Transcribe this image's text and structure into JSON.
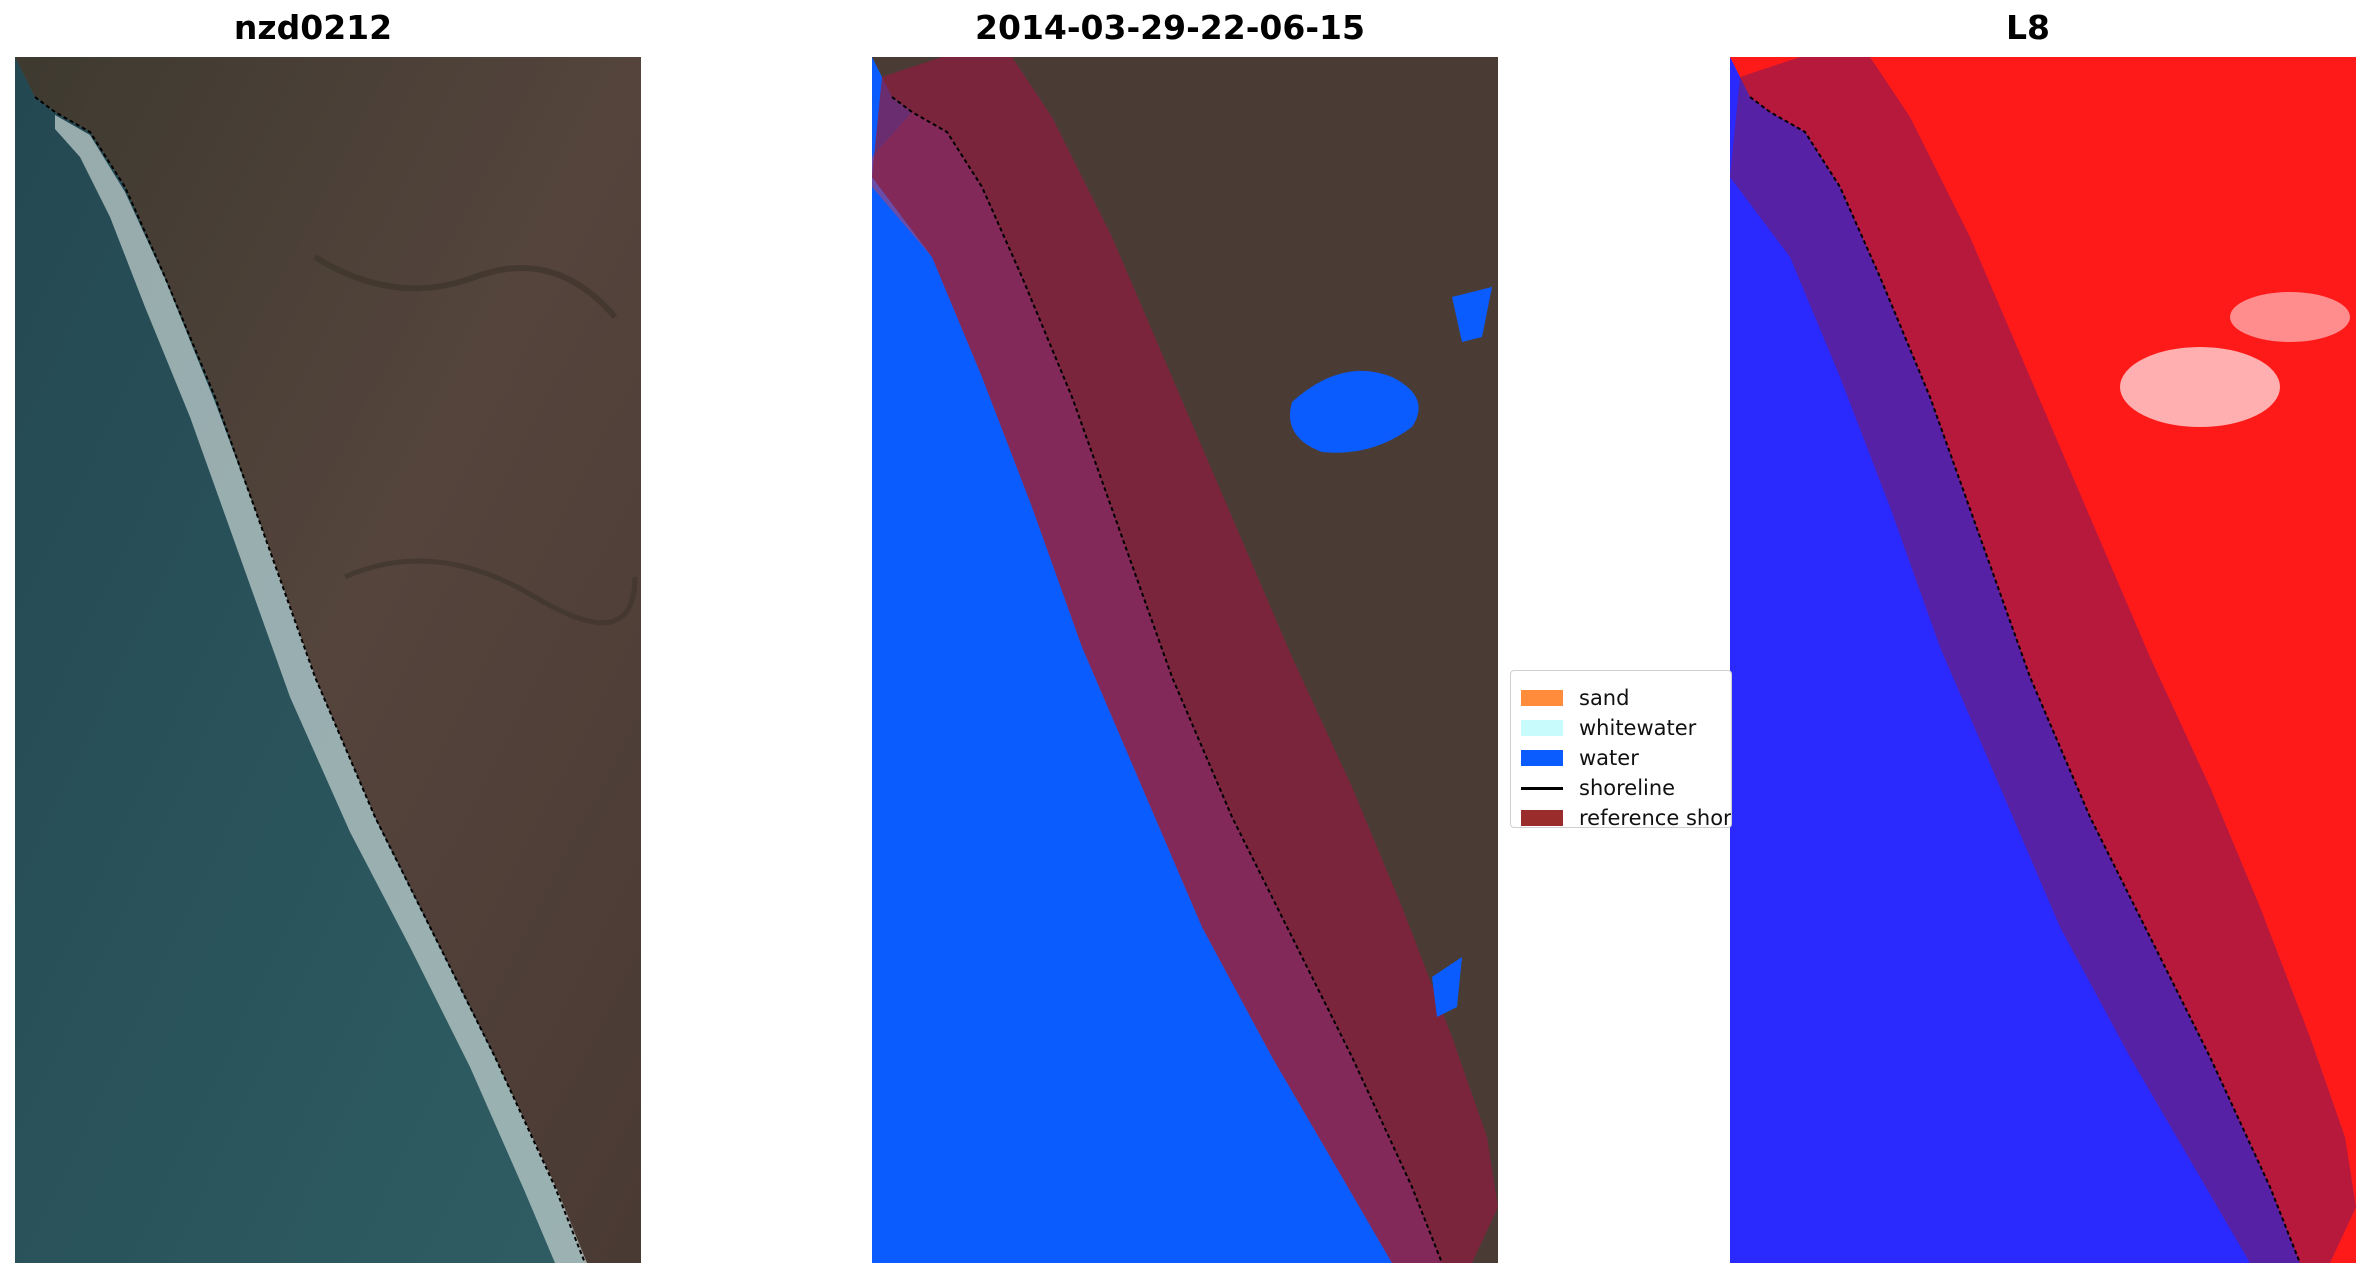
{
  "panels": [
    {
      "title": "nzd0212"
    },
    {
      "title": "2014-03-29-22-06-15"
    },
    {
      "title": "L8"
    }
  ],
  "legend": {
    "items": [
      {
        "label": "sand",
        "color": "#ff8c3a",
        "kind": "patch"
      },
      {
        "label": "whitewater",
        "color": "#c8fbfb",
        "kind": "patch"
      },
      {
        "label": "water",
        "color": "#0a5cff",
        "kind": "patch"
      },
      {
        "label": "shoreline",
        "color": "#000000",
        "kind": "line"
      },
      {
        "label": "reference shoreline",
        "color": "#9b2c2c",
        "kind": "patch"
      }
    ]
  },
  "colors": {
    "land": "#4a3c35",
    "ocean": "#264850",
    "surf": "#e6efef",
    "water_class": "#0a5cff",
    "reference_band": "#8b1e3f",
    "index_positive": "#ff1a1a",
    "index_negative": "#2020ff"
  }
}
